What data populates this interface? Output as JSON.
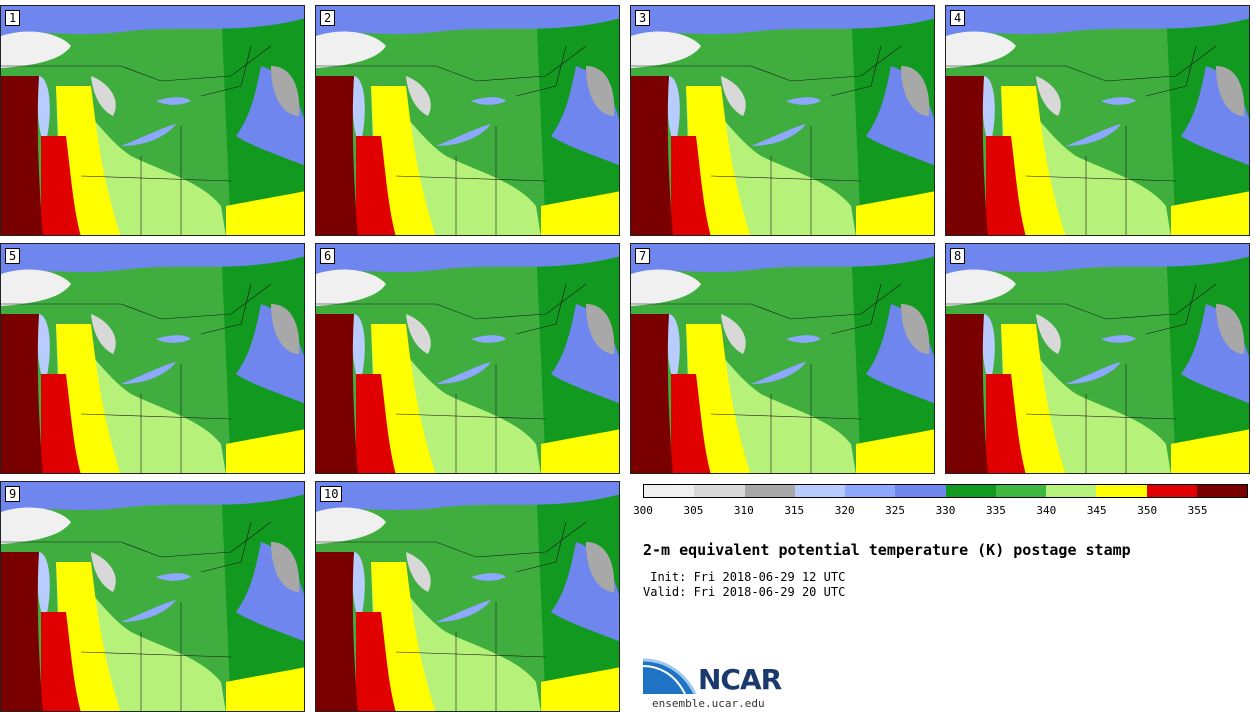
{
  "panels": [
    {
      "label": "1"
    },
    {
      "label": "2"
    },
    {
      "label": "3"
    },
    {
      "label": "4"
    },
    {
      "label": "5"
    },
    {
      "label": "6"
    },
    {
      "label": "7"
    },
    {
      "label": "8"
    },
    {
      "label": "9"
    },
    {
      "label": "10"
    }
  ],
  "colorbar": {
    "colors": [
      "#f0f0f0",
      "#d8d8d8",
      "#a8a8a8",
      "#b8ccff",
      "#8fa8ff",
      "#6f86ef",
      "#119a1f",
      "#3fb83f",
      "#b6f27a",
      "#ffff00",
      "#e00000",
      "#7a0000"
    ],
    "ticks": [
      "300",
      "305",
      "310",
      "315",
      "320",
      "325",
      "330",
      "335",
      "340",
      "345",
      "350",
      "355"
    ]
  },
  "title": "2-m equivalent potential temperature (K) postage stamp",
  "init": " Init: Fri 2018-06-29 12 UTC",
  "valid": "Valid: Fri 2018-06-29 20 UTC",
  "logo": {
    "name": "NCAR",
    "site": "ensemble.ucar.edu"
  }
}
